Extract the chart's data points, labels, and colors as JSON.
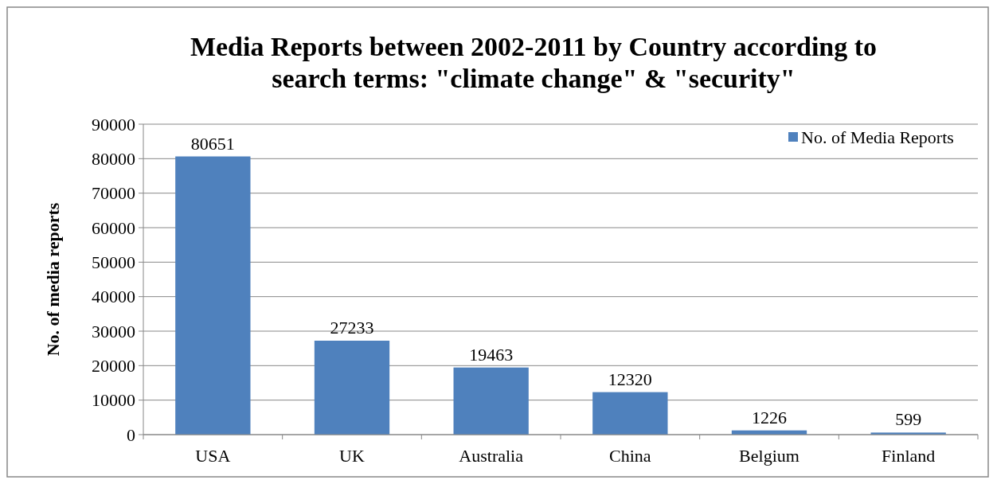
{
  "chart_data": {
    "type": "bar",
    "title": "Media Reports between 2002-2011 by Country according to search terms: \"climate change\" & \"security\"",
    "ylabel": "No. of media reports",
    "categories": [
      "USA",
      "UK",
      "Australia",
      "China",
      "Belgium",
      "Finland"
    ],
    "series": [
      {
        "name": "No. of Media Reports",
        "color": "#4f81bd",
        "values": [
          80651,
          27233,
          19463,
          12320,
          1226,
          599
        ]
      }
    ],
    "ylim": [
      0,
      90000
    ],
    "yticks": [
      0,
      10000,
      20000,
      30000,
      40000,
      50000,
      60000,
      70000,
      80000,
      90000
    ],
    "grid": "y",
    "legend": "top right",
    "data_labels": true
  }
}
